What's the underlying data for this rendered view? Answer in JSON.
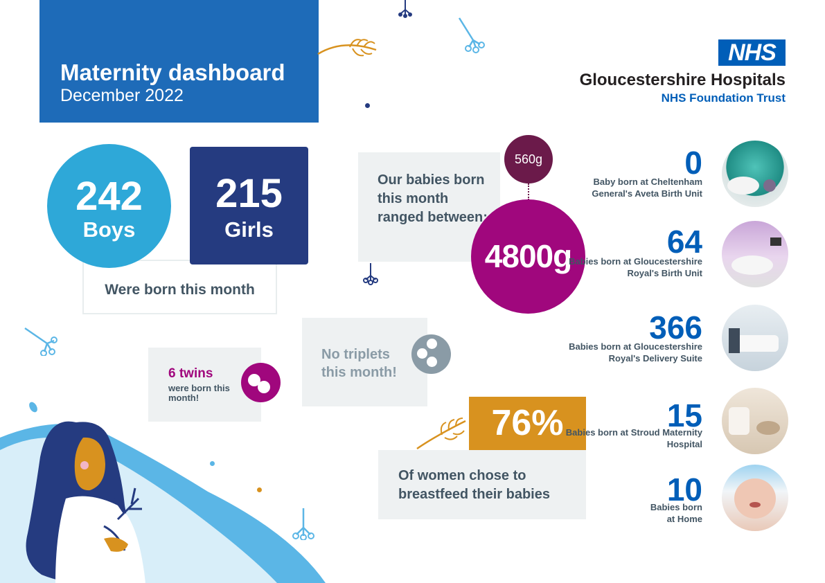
{
  "title": {
    "main": "Maternity dashboard",
    "sub": "December 2022"
  },
  "logo": {
    "nhs": "NHS",
    "trust_name": "Gloucestershire Hospitals",
    "trust_sub": "NHS Foundation Trust"
  },
  "births": {
    "boys_count": "242",
    "boys_label": "Boys",
    "girls_count": "215",
    "girls_label": "Girls",
    "caption": "Were born this month"
  },
  "weights": {
    "caption": "Our babies born this month ranged between:",
    "min": "560g",
    "max": "4800g"
  },
  "twins": {
    "headline": "6 twins",
    "sub": "were born this month!"
  },
  "triplets": {
    "text": "No triplets this month!"
  },
  "breastfeeding": {
    "percent": "76%",
    "caption": "Of women chose to breastfeed their babies"
  },
  "locations": [
    {
      "count": "0",
      "label": "Baby born at Cheltenham General's Aveta Birth Unit"
    },
    {
      "count": "64",
      "label": "Babies born at Gloucestershire Royal's Birth Unit"
    },
    {
      "count": "366",
      "label": "Babies born at Gloucestershire Royal's Delivery Suite"
    },
    {
      "count": "15",
      "label": "Babies born at Stroud Maternity Hospital"
    },
    {
      "count": "10",
      "label": "Babies born at Home"
    }
  ],
  "colors": {
    "nhs_blue": "#005eb8",
    "boys": "#2ea8d8",
    "girls": "#253b80",
    "magenta": "#a0077d",
    "plum": "#6b1a4a",
    "gold": "#d8921f",
    "grey_panel": "#eef1f2"
  }
}
